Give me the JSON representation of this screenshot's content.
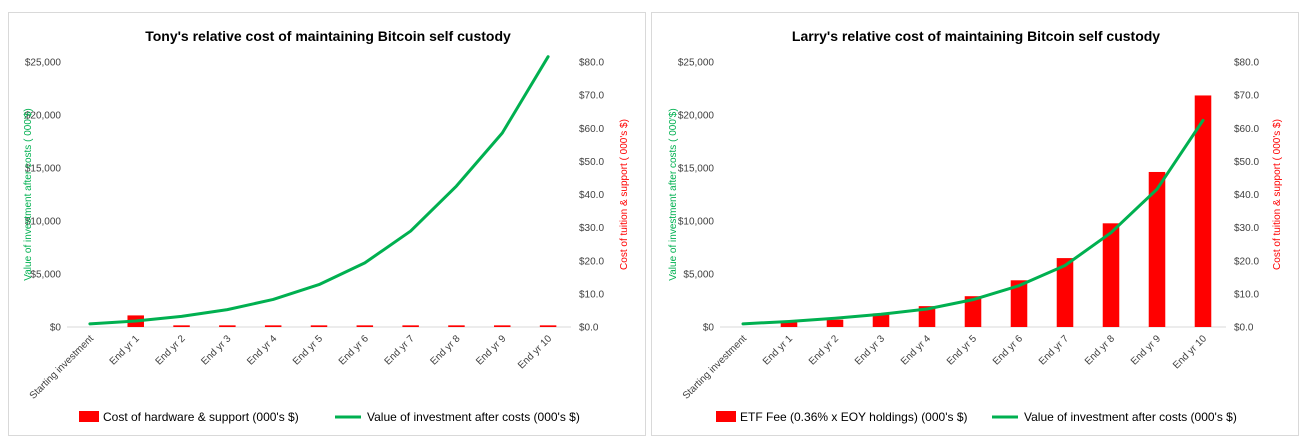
{
  "chart_data": [
    {
      "type": "bar",
      "title": "Tony's relative cost of maintaining Bitcoin self custody",
      "categories": [
        "Starting investment",
        "End yr 1",
        "End yr 2",
        "End yr 3",
        "End yr 4",
        "End yr 5",
        "End yr 6",
        "End yr 7",
        "End yr 8",
        "End yr 9",
        "End yr 10"
      ],
      "y_left": {
        "label": "Value of investment after costs ( 000'$)",
        "ticks": [
          "$0",
          "$5,000",
          "$10,000",
          "$15,000",
          "$20,000",
          "$25,000"
        ],
        "range": [
          0,
          25000
        ]
      },
      "y_right": {
        "label": "Cost of tuition & support ( 000's $)",
        "ticks": [
          "$0.0",
          "$10.0",
          "$20.0",
          "$30.0",
          "$40.0",
          "$50.0",
          "$60.0",
          "$70.0",
          "$80.0"
        ],
        "range": [
          0,
          80
        ]
      },
      "bars": {
        "name": "Cost of hardware & support (000's $)",
        "color": "#ff0000",
        "values": [
          null,
          3.5,
          0.5,
          0.5,
          0.5,
          0.5,
          0.5,
          0.5,
          0.5,
          0.5,
          0.5
        ]
      },
      "line": {
        "name": "Value of investment after costs (000's $)",
        "color": "#00b050",
        "values": [
          300,
          570,
          1000,
          1640,
          2600,
          4000,
          6050,
          9050,
          13300,
          18300,
          25500
        ]
      },
      "legend_position": "bottom"
    },
    {
      "type": "bar",
      "title": "Larry's relative cost of maintaining Bitcoin self custody",
      "categories": [
        "Starting investment",
        "End yr 1",
        "End yr 2",
        "End yr 3",
        "End yr 4",
        "End yr 5",
        "End yr 6",
        "End yr 7",
        "End yr 8",
        "End yr 9",
        "End yr 10"
      ],
      "y_left": {
        "label": "Value of investment after costs ( 000'$)",
        "ticks": [
          "$0",
          "$5,000",
          "$10,000",
          "$15,000",
          "$20,000",
          "$25,000"
        ],
        "range": [
          0,
          25000
        ]
      },
      "y_right": {
        "label": "Cost of tuition & support ( 000's $)",
        "ticks": [
          "$0.0",
          "$10.0",
          "$20.0",
          "$30.0",
          "$40.0",
          "$50.0",
          "$60.0",
          "$70.0",
          "$80.0"
        ],
        "range": [
          0,
          80
        ]
      },
      "bars": {
        "name": "ETF Fee (0.36% x EOY holdings)  (000's $)",
        "color": "#ff0000",
        "values": [
          null,
          1.4,
          2.2,
          4.1,
          6.3,
          9.3,
          14.1,
          20.8,
          31.3,
          46.8,
          69.9
        ]
      },
      "line": {
        "name": "Value of investment after costs (000's $)",
        "color": "#00b050",
        "values": [
          300,
          520,
          820,
          1200,
          1700,
          2580,
          3900,
          5800,
          8900,
          13000,
          19500
        ]
      },
      "legend_position": "bottom"
    }
  ]
}
